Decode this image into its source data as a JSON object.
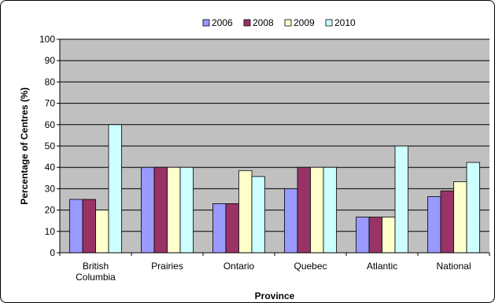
{
  "chart_data": {
    "type": "bar",
    "categories": [
      [
        "British",
        "Columbia"
      ],
      [
        "Prairies"
      ],
      [
        "Ontario"
      ],
      [
        "Quebec"
      ],
      [
        "Atlantic"
      ],
      [
        "National"
      ]
    ],
    "series": [
      {
        "name": "2006",
        "color": "#9999FF",
        "values": [
          25,
          40,
          23,
          30,
          16.7,
          26.3
        ]
      },
      {
        "name": "2008",
        "color": "#993366",
        "values": [
          25,
          40,
          23,
          40,
          16.7,
          29
        ]
      },
      {
        "name": "2009",
        "color": "#FFFFCC",
        "values": [
          20,
          40,
          38.5,
          40,
          16.7,
          33.3
        ]
      },
      {
        "name": "2010",
        "color": "#CCFFFF",
        "values": [
          60,
          40,
          35.7,
          40,
          50,
          42.3
        ]
      }
    ],
    "xlabel": "Province",
    "ylabel": "Percentage of Centres (%)",
    "ylim": [
      0,
      100
    ],
    "yticks": [
      "0",
      "10",
      "20",
      "30",
      "40",
      "50",
      "60",
      "70",
      "80",
      "90",
      "100"
    ],
    "plot_background": "#C0C0C0",
    "gridlines": true,
    "legend_position": "top"
  }
}
